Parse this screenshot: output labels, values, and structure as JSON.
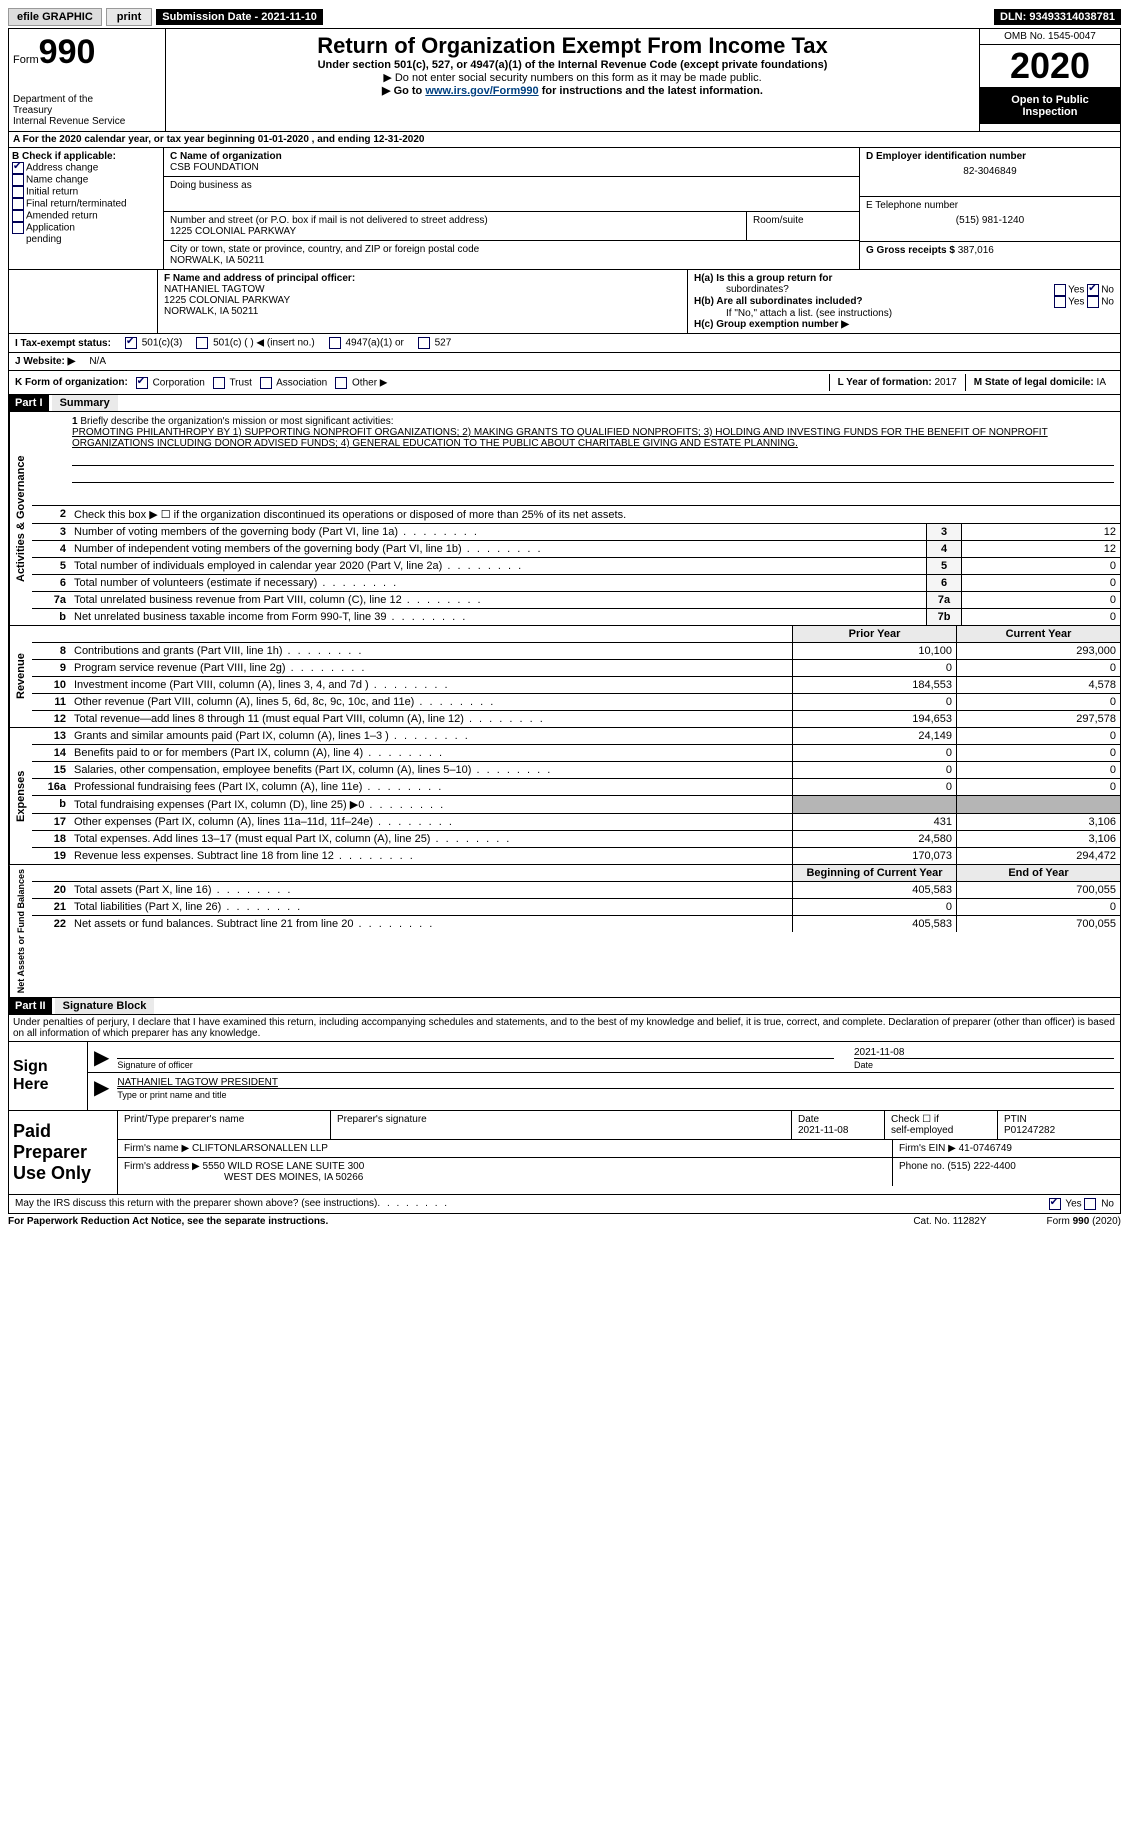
{
  "topbar": {
    "efile": "efile GRAPHIC",
    "print": "print",
    "submission_label": "Submission Date - 2021-11-10",
    "dln": "DLN: 93493314038781"
  },
  "header": {
    "form_prefix": "Form",
    "form_number": "990",
    "dept1": "Department of the",
    "dept2": "Treasury",
    "dept3": "Internal Revenue Service",
    "title": "Return of Organization Exempt From Income Tax",
    "subtitle": "Under section 501(c), 527, or 4947(a)(1) of the Internal Revenue Code (except private foundations)",
    "ssn_note": "Do not enter social security numbers on this form as it may be made public.",
    "goto_pre": "Go to ",
    "goto_link": "www.irs.gov/Form990",
    "goto_post": " for instructions and the latest information.",
    "omb": "OMB No. 1545-0047",
    "year": "2020",
    "open1": "Open to Public",
    "open2": "Inspection"
  },
  "rowA": "A   For the 2020 calendar year, or tax year beginning 01-01-2020    , and ending 12-31-2020",
  "colB": {
    "title": "B Check if applicable:",
    "addr_change": "Address change",
    "name_change": "Name change",
    "initial": "Initial return",
    "final": "Final return/terminated",
    "amended": "Amended return",
    "app_pending1": "Application",
    "app_pending2": "pending"
  },
  "colC": {
    "name_label": "C Name of organization",
    "name": "CSB FOUNDATION",
    "dba_label": "Doing business as",
    "addr_label": "Number and street (or P.O. box if mail is not delivered to street address)",
    "addr": "1225 COLONIAL PARKWAY",
    "suite_label": "Room/suite",
    "city_label": "City or town, state or province, country, and ZIP or foreign postal code",
    "city": "NORWALK, IA  50211"
  },
  "colD": {
    "ein_label": "D Employer identification number",
    "ein": "82-3046849",
    "phone_label": "E Telephone number",
    "phone": "(515) 981-1240",
    "gross_label": "G Gross receipts $",
    "gross": "387,016"
  },
  "sectionF": {
    "label": "F Name and address of principal officer:",
    "name": "NATHANIEL TAGTOW",
    "addr1": "1225 COLONIAL PARKWAY",
    "addr2": "NORWALK, IA  50211"
  },
  "sectionH": {
    "ha": "H(a)  Is this a group return for",
    "ha2": "subordinates?",
    "hb": "H(b)  Are all subordinates included?",
    "hnote": "If \"No,\" attach a list. (see instructions)",
    "hc": "H(c)  Group exemption number ▶",
    "yes": "Yes",
    "no": "No"
  },
  "rowI": {
    "label": "I    Tax-exempt status:",
    "c3": "501(c)(3)",
    "c": "501(c) (  ) ◀ (insert no.)",
    "a1": "4947(a)(1) or",
    "s527": "527"
  },
  "rowJ": {
    "label": "J    Website: ▶",
    "val": "N/A"
  },
  "rowK": {
    "label": "K Form of organization:",
    "corp": "Corporation",
    "trust": "Trust",
    "assoc": "Association",
    "other": "Other ▶",
    "l_label": "L Year of formation: ",
    "l_val": "2017",
    "m_label": "M State of legal domicile: ",
    "m_val": "IA"
  },
  "part1": {
    "hdr": "Part I",
    "title": "Summary",
    "q1_label": "1",
    "q1_text": "Briefly describe the organization's mission or most significant activities:",
    "q1_mission": "PROMOTING PHILANTHROPY BY 1) SUPPORTING NONPROFIT ORGANIZATIONS; 2) MAKING GRANTS TO QUALIFIED NONPROFITS; 3) HOLDING AND INVESTING FUNDS FOR THE BENEFIT OF NONPROFIT ORGANIZATIONS INCLUDING DONOR ADVISED FUNDS; 4) GENERAL EDUCATION TO THE PUBLIC ABOUT CHARITABLE GIVING AND ESTATE PLANNING.",
    "q2": "Check this box ▶ ☐  if the organization discontinued its operations or disposed of more than 25% of its net assets.",
    "vlabels": {
      "gov": "Activities & Governance",
      "rev": "Revenue",
      "exp": "Expenses",
      "net": "Net Assets or Fund Balances"
    },
    "rows_gov": [
      {
        "n": "3",
        "t": "Number of voting members of the governing body (Part VI, line 1a)",
        "box": "3",
        "v": "12"
      },
      {
        "n": "4",
        "t": "Number of independent voting members of the governing body (Part VI, line 1b)",
        "box": "4",
        "v": "12"
      },
      {
        "n": "5",
        "t": "Total number of individuals employed in calendar year 2020 (Part V, line 2a)",
        "box": "5",
        "v": "0"
      },
      {
        "n": "6",
        "t": "Total number of volunteers (estimate if necessary)",
        "box": "6",
        "v": "0"
      },
      {
        "n": "7a",
        "t": "Total unrelated business revenue from Part VIII, column (C), line 12",
        "box": "7a",
        "v": "0"
      },
      {
        "n": "b",
        "t": "Net unrelated business taxable income from Form 990-T, line 39",
        "box": "7b",
        "v": "0"
      }
    ],
    "yr_hdr": {
      "prior": "Prior Year",
      "curr": "Current Year"
    },
    "rows_rev": [
      {
        "n": "8",
        "t": "Contributions and grants (Part VIII, line 1h)",
        "p": "10,100",
        "c": "293,000"
      },
      {
        "n": "9",
        "t": "Program service revenue (Part VIII, line 2g)",
        "p": "0",
        "c": "0"
      },
      {
        "n": "10",
        "t": "Investment income (Part VIII, column (A), lines 3, 4, and 7d )",
        "p": "184,553",
        "c": "4,578"
      },
      {
        "n": "11",
        "t": "Other revenue (Part VIII, column (A), lines 5, 6d, 8c, 9c, 10c, and 11e)",
        "p": "0",
        "c": "0"
      },
      {
        "n": "12",
        "t": "Total revenue—add lines 8 through 11 (must equal Part VIII, column (A), line 12)",
        "p": "194,653",
        "c": "297,578"
      }
    ],
    "rows_exp": [
      {
        "n": "13",
        "t": "Grants and similar amounts paid (Part IX, column (A), lines 1–3 )",
        "p": "24,149",
        "c": "0"
      },
      {
        "n": "14",
        "t": "Benefits paid to or for members (Part IX, column (A), line 4)",
        "p": "0",
        "c": "0"
      },
      {
        "n": "15",
        "t": "Salaries, other compensation, employee benefits (Part IX, column (A), lines 5–10)",
        "p": "0",
        "c": "0"
      },
      {
        "n": "16a",
        "t": "Professional fundraising fees (Part IX, column (A), line 11e)",
        "p": "0",
        "c": "0"
      },
      {
        "n": "b",
        "t": "Total fundraising expenses (Part IX, column (D), line 25) ▶0",
        "p": "",
        "c": "",
        "grey": true
      },
      {
        "n": "17",
        "t": "Other expenses (Part IX, column (A), lines 11a–11d, 11f–24e)",
        "p": "431",
        "c": "3,106"
      },
      {
        "n": "18",
        "t": "Total expenses. Add lines 13–17 (must equal Part IX, column (A), line 25)",
        "p": "24,580",
        "c": "3,106"
      },
      {
        "n": "19",
        "t": "Revenue less expenses. Subtract line 18 from line 12",
        "p": "170,073",
        "c": "294,472"
      }
    ],
    "net_hdr": {
      "prior": "Beginning of Current Year",
      "curr": "End of Year"
    },
    "rows_net": [
      {
        "n": "20",
        "t": "Total assets (Part X, line 16)",
        "p": "405,583",
        "c": "700,055"
      },
      {
        "n": "21",
        "t": "Total liabilities (Part X, line 26)",
        "p": "0",
        "c": "0"
      },
      {
        "n": "22",
        "t": "Net assets or fund balances. Subtract line 21 from line 20",
        "p": "405,583",
        "c": "700,055"
      }
    ]
  },
  "part2": {
    "hdr": "Part II",
    "title": "Signature Block",
    "decl": "Under penalties of perjury, I declare that I have examined this return, including accompanying schedules and statements, and to the best of my knowledge and belief, it is true, correct, and complete. Declaration of preparer (other than officer) is based on all information of which preparer has any knowledge."
  },
  "sign": {
    "label": "Sign Here",
    "sig_of_officer": "Signature of officer",
    "date": "2021-11-08",
    "date_label": "Date",
    "name_title": "NATHANIEL TAGTOW  PRESIDENT",
    "type_label": "Type or print name and title"
  },
  "preparer": {
    "label": "Paid Preparer Use Only",
    "h1": "Print/Type preparer's name",
    "h2": "Preparer's signature",
    "h3_label": "Date",
    "h3": "2021-11-08",
    "h4a": "Check ☐ if",
    "h4b": "self-employed",
    "h5a": "PTIN",
    "h5b": "P01247282",
    "firm_label": "Firm's name    ▶",
    "firm": "CLIFTONLARSONALLEN LLP",
    "ein_label": "Firm's EIN ▶",
    "ein": "41-0746749",
    "addr_label": "Firm's address ▶",
    "addr1": "5550 WILD ROSE LANE SUITE 300",
    "addr2": "WEST DES MOINES, IA  50266",
    "phone_label": "Phone no.",
    "phone": "(515) 222-4400"
  },
  "discuss": {
    "q": "May the IRS discuss this return with the preparer shown above? (see instructions)",
    "yes": "Yes",
    "no": "No"
  },
  "footer": {
    "left": "For Paperwork Reduction Act Notice, see the separate instructions.",
    "mid": "Cat. No. 11282Y",
    "right": "Form 990 (2020)"
  }
}
